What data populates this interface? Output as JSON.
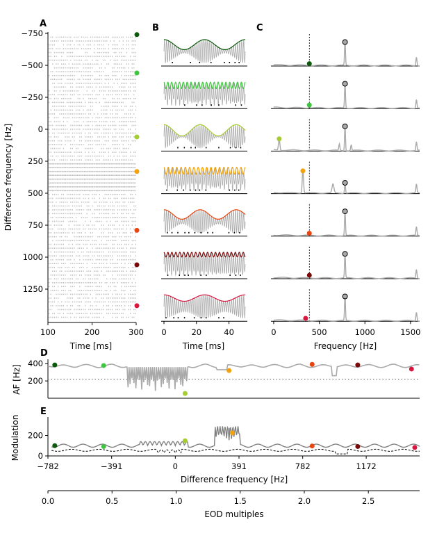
{
  "panel_labels": {
    "a": "A",
    "b": "B",
    "c": "C",
    "d": "D",
    "e": "E"
  },
  "colors": {
    "series": [
      "#0d5a0d",
      "#3fc43f",
      "#a6cc33",
      "#f2a20c",
      "#e84510",
      "#7a0a0a",
      "#d8163e"
    ],
    "trace": "#a9a9a9",
    "darktrace": "#808080",
    "raster": "#b8b8b8"
  },
  "chart_data": [
    {
      "id": "A",
      "type": "scatter",
      "title": "",
      "xlabel": "Time [ms]",
      "ylabel": "Difference frequency [Hz]",
      "xlim": [
        100,
        300
      ],
      "ylim": [
        -750,
        1500
      ],
      "y_inverted": true,
      "xticks": [
        "100",
        "200",
        "300"
      ],
      "yticks": [
        "−750",
        "−500",
        "−250",
        "0",
        "250",
        "500",
        "750",
        "1000",
        "1250"
      ],
      "ytick_values": [
        -750,
        -500,
        -250,
        0,
        250,
        500,
        750,
        1000,
        1250
      ],
      "raster_rows_df": [
        -720,
        -690,
        -660,
        -630,
        -600,
        -570,
        -540,
        -510,
        -480,
        -450,
        -420,
        -390,
        -360,
        -330,
        -300,
        -270,
        -240,
        -210,
        -180,
        -150,
        -120,
        -90,
        -60,
        -30,
        0,
        30,
        60,
        90,
        120,
        150,
        180,
        210,
        240,
        270,
        300,
        330,
        360,
        390,
        420,
        450,
        480,
        510,
        540,
        570,
        600,
        630,
        660,
        690,
        720,
        750,
        780,
        810,
        840,
        870,
        900,
        930,
        960,
        990,
        1020,
        1050,
        1080,
        1110,
        1140,
        1170,
        1200,
        1230,
        1260,
        1290,
        1320,
        1350,
        1380,
        1410,
        1440,
        1470
      ],
      "marker_df": [
        -740,
        -440,
        60,
        330,
        790,
        1060,
        1380
      ]
    },
    {
      "id": "B",
      "type": "line",
      "title": "",
      "xlabel": "Time [ms]",
      "xlim": [
        0,
        50
      ],
      "xticks": [
        "0",
        "20",
        "40"
      ],
      "rows": [
        {
          "am_freq": 40,
          "am_depth": 0.85
        },
        {
          "am_freq": 420,
          "am_depth": 0.55
        },
        {
          "am_freq": 45,
          "am_depth": 0.95
        },
        {
          "am_freq": 380,
          "am_depth": 0.6
        },
        {
          "am_freq": 45,
          "am_depth": 0.8
        },
        {
          "am_freq": 410,
          "am_depth": 0.4
        },
        {
          "am_freq": 40,
          "am_depth": 0.55
        }
      ]
    },
    {
      "id": "C",
      "type": "line",
      "title": "",
      "xlabel": "Frequency [Hz]",
      "xlim": [
        -30,
        1600
      ],
      "xticks": [
        "0",
        "500",
        "1000",
        "1500"
      ],
      "dashed_line_x": 391,
      "eod_peak_x": 782,
      "rows": [
        {
          "peak_x": 391,
          "peak_val": 0.08,
          "eod_val": 0.82
        },
        {
          "peak_x": 391,
          "peak_val": 0.12,
          "eod_val": 0.85
        },
        {
          "peak_x": 60,
          "peak_val": 0.42,
          "eod_val": 0.85
        },
        {
          "peak_x": 320,
          "peak_val": 0.78,
          "eod_val": 0.37
        },
        {
          "peak_x": 391,
          "peak_val": 0.1,
          "eod_val": 0.85
        },
        {
          "peak_x": 391,
          "peak_val": 0.12,
          "eod_val": 0.85
        },
        {
          "peak_x": 350,
          "peak_val": 0.1,
          "eod_val": 0.85
        }
      ]
    },
    {
      "id": "D",
      "type": "line",
      "title": "",
      "ylabel": "AF [Hz]",
      "xlim": [
        -782,
        1500
      ],
      "ylim": [
        0,
        450
      ],
      "yticks": [
        "200",
        "400"
      ],
      "ytick_values": [
        200,
        400
      ],
      "dotted_level": 220,
      "markers": [
        {
          "x": -740,
          "y": 385
        },
        {
          "x": -440,
          "y": 378
        },
        {
          "x": 60,
          "y": 55
        },
        {
          "x": 330,
          "y": 320
        },
        {
          "x": 840,
          "y": 392
        },
        {
          "x": 1120,
          "y": 385
        },
        {
          "x": 1450,
          "y": 338
        }
      ]
    },
    {
      "id": "E",
      "type": "line",
      "title": "",
      "xlabel": "Difference frequency [Hz]",
      "ylabel": "Modulation",
      "xlim": [
        -782,
        1500
      ],
      "ylim": [
        0,
        380
      ],
      "xticks": [
        "−782",
        "−391",
        "0",
        "391",
        "782",
        "1172"
      ],
      "xtick_values": [
        -782,
        -391,
        0,
        391,
        782,
        1172
      ],
      "yticks": [
        "0",
        "200"
      ],
      "ytick_values": [
        0,
        200
      ],
      "markers": [
        {
          "x": -740,
          "y": 100
        },
        {
          "x": -440,
          "y": 92
        },
        {
          "x": 60,
          "y": 148
        },
        {
          "x": 350,
          "y": 225
        },
        {
          "x": 840,
          "y": 97
        },
        {
          "x": 1120,
          "y": 92
        },
        {
          "x": 1470,
          "y": 82
        }
      ]
    },
    {
      "id": "EOD",
      "type": "line",
      "xlabel": "EOD multiples",
      "xlim": [
        0,
        2.9
      ],
      "xticks": [
        "0.0",
        "0.5",
        "1.0",
        "1.5",
        "2.0",
        "2.5"
      ],
      "xtick_values": [
        0,
        0.5,
        1.0,
        1.5,
        2.0,
        2.5
      ]
    }
  ]
}
